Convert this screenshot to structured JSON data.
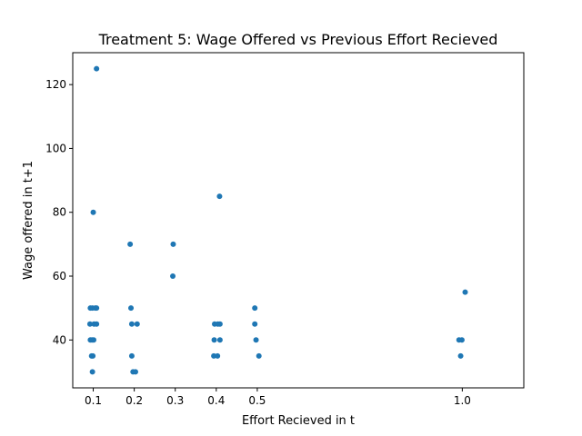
{
  "chart_data": {
    "type": "scatter",
    "title": "Treatment 5: Wage Offered vs Previous Effort Recieved",
    "xlabel": "Effort Recieved in t",
    "ylabel": "Wage offered in t+1",
    "xlim": [
      0.05,
      1.15
    ],
    "ylim": [
      25,
      130
    ],
    "xticks": [
      0.1,
      0.2,
      0.3,
      0.4,
      0.5,
      1.0
    ],
    "xtick_labels": [
      "0.1",
      "0.2",
      "0.3",
      "0.4",
      "0.5",
      "1.0"
    ],
    "yticks": [
      40,
      60,
      80,
      100,
      120
    ],
    "ytick_labels": [
      "40",
      "60",
      "80",
      "100",
      "120"
    ],
    "grid": false,
    "legend": "none",
    "color": "#1f77b4",
    "points": [
      {
        "x": 0.108,
        "y": 125
      },
      {
        "x": 0.1,
        "y": 80
      },
      {
        "x": 0.093,
        "y": 50
      },
      {
        "x": 0.098,
        "y": 50
      },
      {
        "x": 0.105,
        "y": 50
      },
      {
        "x": 0.108,
        "y": 50
      },
      {
        "x": 0.092,
        "y": 45
      },
      {
        "x": 0.102,
        "y": 45
      },
      {
        "x": 0.108,
        "y": 45
      },
      {
        "x": 0.093,
        "y": 40
      },
      {
        "x": 0.097,
        "y": 40
      },
      {
        "x": 0.101,
        "y": 40
      },
      {
        "x": 0.096,
        "y": 35
      },
      {
        "x": 0.099,
        "y": 35
      },
      {
        "x": 0.098,
        "y": 30
      },
      {
        "x": 0.19,
        "y": 70
      },
      {
        "x": 0.192,
        "y": 50
      },
      {
        "x": 0.194,
        "y": 45
      },
      {
        "x": 0.207,
        "y": 45
      },
      {
        "x": 0.194,
        "y": 35
      },
      {
        "x": 0.197,
        "y": 30
      },
      {
        "x": 0.203,
        "y": 30
      },
      {
        "x": 0.295,
        "y": 70
      },
      {
        "x": 0.294,
        "y": 60
      },
      {
        "x": 0.408,
        "y": 85
      },
      {
        "x": 0.396,
        "y": 45
      },
      {
        "x": 0.404,
        "y": 45
      },
      {
        "x": 0.409,
        "y": 45
      },
      {
        "x": 0.395,
        "y": 40
      },
      {
        "x": 0.409,
        "y": 40
      },
      {
        "x": 0.394,
        "y": 35
      },
      {
        "x": 0.403,
        "y": 35
      },
      {
        "x": 0.494,
        "y": 50
      },
      {
        "x": 0.494,
        "y": 45
      },
      {
        "x": 0.497,
        "y": 40
      },
      {
        "x": 0.504,
        "y": 35
      },
      {
        "x": 1.007,
        "y": 55
      },
      {
        "x": 0.992,
        "y": 40
      },
      {
        "x": 0.999,
        "y": 40
      },
      {
        "x": 0.996,
        "y": 35
      }
    ]
  }
}
